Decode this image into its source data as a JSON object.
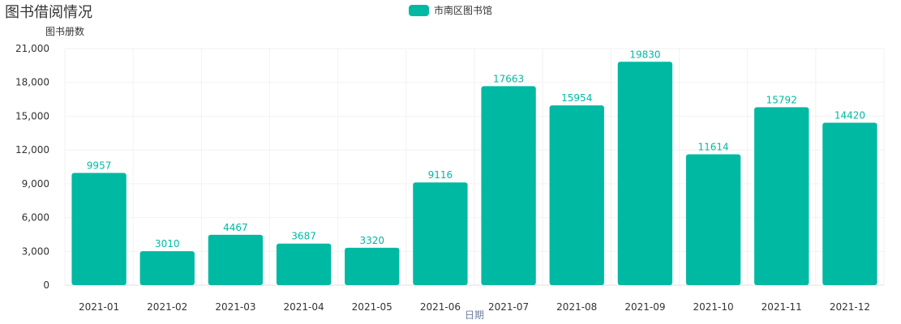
{
  "title": "图书借阅情况",
  "legend": {
    "label": "市南区图书馆"
  },
  "colors": {
    "bar": "#00B9A3",
    "label": "#00B9A3",
    "axis_text": "#333333",
    "xlabel_text": "#6E7F9E",
    "grid": "#F2F2F2"
  },
  "chart_data": {
    "type": "bar",
    "title": "图书借阅情况",
    "xlabel": "日期",
    "ylabel": "图书册数",
    "categories": [
      "2021-01",
      "2021-02",
      "2021-03",
      "2021-04",
      "2021-05",
      "2021-06",
      "2021-07",
      "2021-08",
      "2021-09",
      "2021-10",
      "2021-11",
      "2021-12"
    ],
    "series": [
      {
        "name": "市南区图书馆",
        "values": [
          9957,
          3010,
          4467,
          3687,
          3320,
          9116,
          17663,
          15954,
          19830,
          11614,
          15792,
          14420
        ]
      }
    ],
    "ylim": [
      0,
      21000
    ],
    "yticks": [
      "0",
      "3,000",
      "6,000",
      "9,000",
      "12,000",
      "15,000",
      "18,000",
      "21,000"
    ],
    "ytick_values": [
      0,
      3000,
      6000,
      9000,
      12000,
      15000,
      18000,
      21000
    ],
    "grid": true,
    "legend_position": "top-center",
    "data_labels": true
  }
}
